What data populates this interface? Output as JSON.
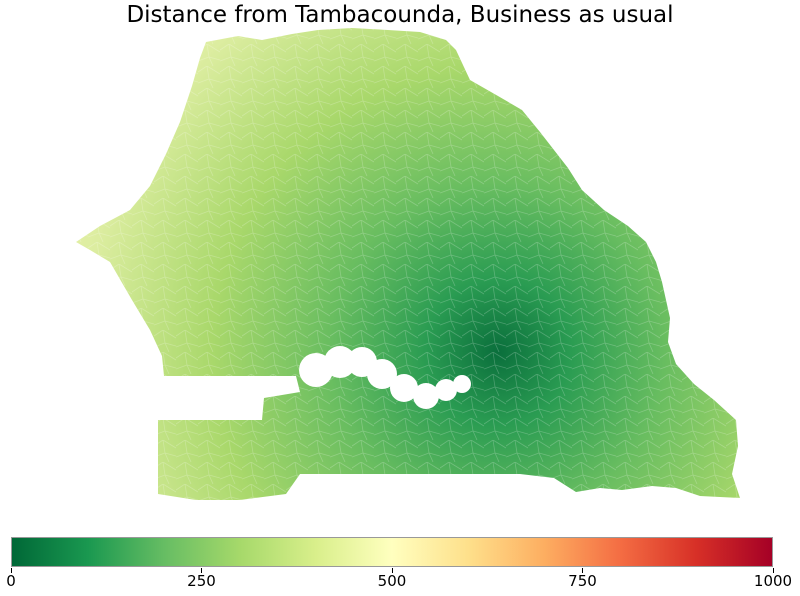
{
  "title": "Distance from Tambacounda, Business as usual",
  "colorbar": {
    "min": 0,
    "max": 1000,
    "ticks": [
      "0",
      "250",
      "500",
      "750",
      "1000"
    ],
    "colormap": "RdYlGn_r",
    "stops": [
      "#006837",
      "#1a9850",
      "#66bd63",
      "#a6d96a",
      "#d9ef8b",
      "#ffffbf",
      "#fee08b",
      "#fdae61",
      "#f46d43",
      "#d73027",
      "#a50026"
    ]
  },
  "map": {
    "region": "Senegal",
    "origin": "Tambacounda",
    "scenario": "Business as usual"
  }
}
